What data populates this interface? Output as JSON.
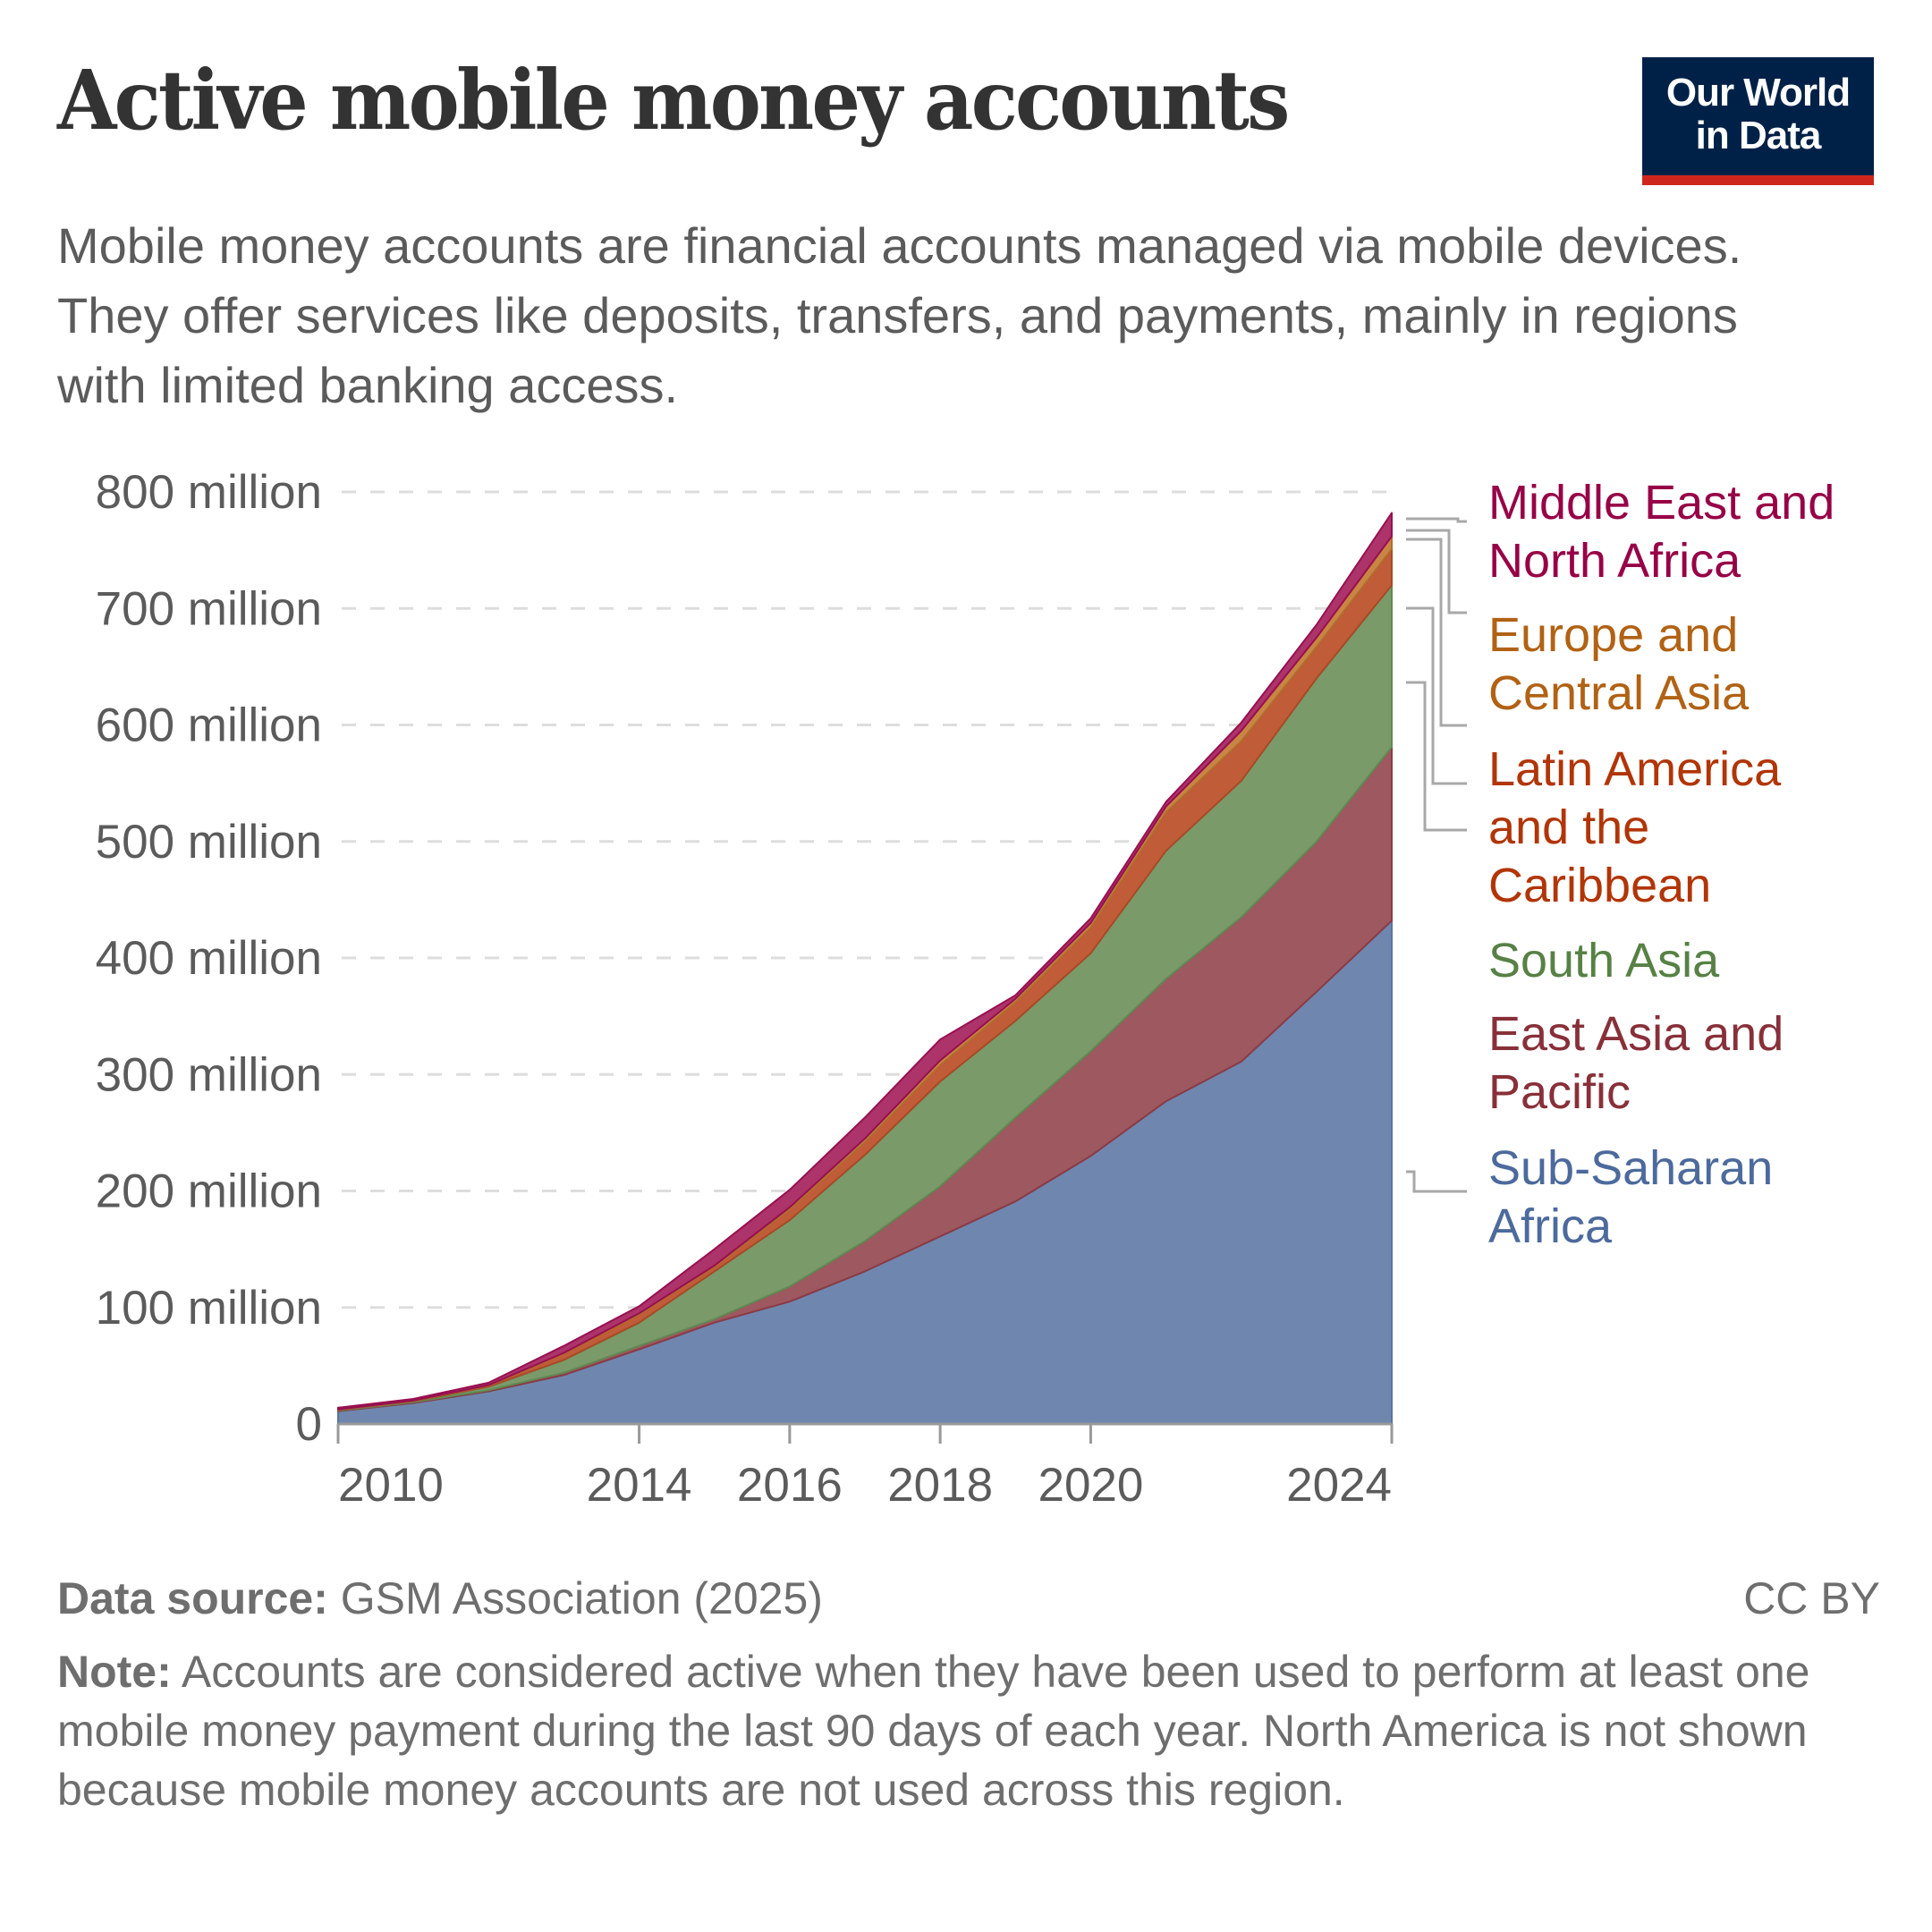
{
  "header": {
    "title": "Active mobile money accounts",
    "subtitle": "Mobile money accounts are financial accounts managed via mobile devices. They offer services like deposits, transfers, and payments, mainly in regions with limited banking access.",
    "logo_line1": "Our World",
    "logo_line2": "in Data"
  },
  "colors": {
    "logo_bg": "#002147",
    "logo_bar": "#ce261e",
    "grid": "#dddddd",
    "axis": "#999999"
  },
  "chart_data": {
    "type": "area",
    "stacked": true,
    "title": "Active mobile money accounts",
    "xlabel": "",
    "ylabel": "",
    "x": [
      2010,
      2011,
      2012,
      2013,
      2014,
      2015,
      2016,
      2017,
      2018,
      2019,
      2020,
      2021,
      2022,
      2023,
      2024
    ],
    "x_tick_labels": [
      "2010",
      "2014",
      "2016",
      "2018",
      "2020",
      "2024"
    ],
    "x_ticks": [
      2010,
      2014,
      2016,
      2018,
      2020,
      2024
    ],
    "y_ticks": [
      0,
      100,
      200,
      300,
      400,
      500,
      600,
      700,
      800
    ],
    "y_tick_labels": [
      "0",
      "100 million",
      "200 million",
      "300 million",
      "400 million",
      "500 million",
      "600 million",
      "700 million",
      "800 million"
    ],
    "ylim": [
      0,
      800
    ],
    "units": "million accounts",
    "grid": "horizontal dashed",
    "legend_position": "right (inline labels)",
    "series": [
      {
        "name": "Sub-Saharan Africa",
        "fill": "#6f87ae",
        "stroke": "#5a74a2",
        "label_color": "#4c6a9c",
        "values": [
          11,
          18,
          28,
          42,
          64,
          87,
          105,
          131,
          161,
          191,
          230,
          277,
          311,
          371,
          432
        ]
      },
      {
        "name": "East Asia and Pacific",
        "fill": "#9e585f",
        "stroke": "#8a3b46",
        "label_color": "#883039",
        "values": [
          0.5,
          0.7,
          1,
          2,
          3,
          3,
          13,
          26,
          43,
          72,
          90,
          105,
          124,
          129,
          149
        ]
      },
      {
        "name": "South Asia",
        "fill": "#7a9a6a",
        "stroke": "#5f8a52",
        "label_color": "#578145",
        "values": [
          0.5,
          0.8,
          3,
          11,
          20,
          41,
          57,
          74,
          90,
          83,
          84,
          110,
          117,
          140,
          139
        ]
      },
      {
        "name": "Latin America and the Caribbean",
        "fill": "#c05c38",
        "stroke": "#a84a26",
        "label_color": "#b13507",
        "values": [
          0.3,
          0.4,
          1,
          5,
          7,
          4,
          9,
          11,
          14,
          16,
          22,
          33,
          34,
          27,
          31
        ]
      },
      {
        "name": "Europe and Central Asia",
        "fill": "#c98543",
        "stroke": "#b26d2e",
        "label_color": "#b16214",
        "values": [
          0.2,
          0.2,
          0.4,
          1,
          1,
          1,
          2,
          3,
          4,
          3,
          4,
          5,
          9,
          8,
          11
        ]
      },
      {
        "name": "Middle East and North Africa",
        "fill": "#ad336b",
        "stroke": "#97104f",
        "label_color": "#970046",
        "values": [
          1.5,
          1.4,
          2,
          6,
          6,
          14,
          15,
          18,
          18,
          3,
          4,
          4,
          7,
          11,
          20
        ]
      }
    ]
  },
  "legend": {
    "items": [
      {
        "lines": [
          "Middle East and",
          "North Africa"
        ],
        "color": "#970046"
      },
      {
        "lines": [
          "Europe and",
          "Central Asia"
        ],
        "color": "#b16214"
      },
      {
        "lines": [
          "Latin America",
          "and the",
          "Caribbean"
        ],
        "color": "#b13507"
      },
      {
        "lines": [
          "South Asia"
        ],
        "color": "#578145"
      },
      {
        "lines": [
          "East Asia and",
          "Pacific"
        ],
        "color": "#883039"
      },
      {
        "lines": [
          "Sub-Saharan",
          "Africa"
        ],
        "color": "#4c6a9c"
      }
    ]
  },
  "footer": {
    "source_label": "Data source:",
    "source_value": " GSM Association (2025)",
    "license": "CC BY",
    "note_label": "Note:",
    "note_text": " Accounts are considered active when they have been used to perform at least one mobile money payment during the last 90 days of each year. North America is not shown because mobile money accounts are not used across this region."
  }
}
